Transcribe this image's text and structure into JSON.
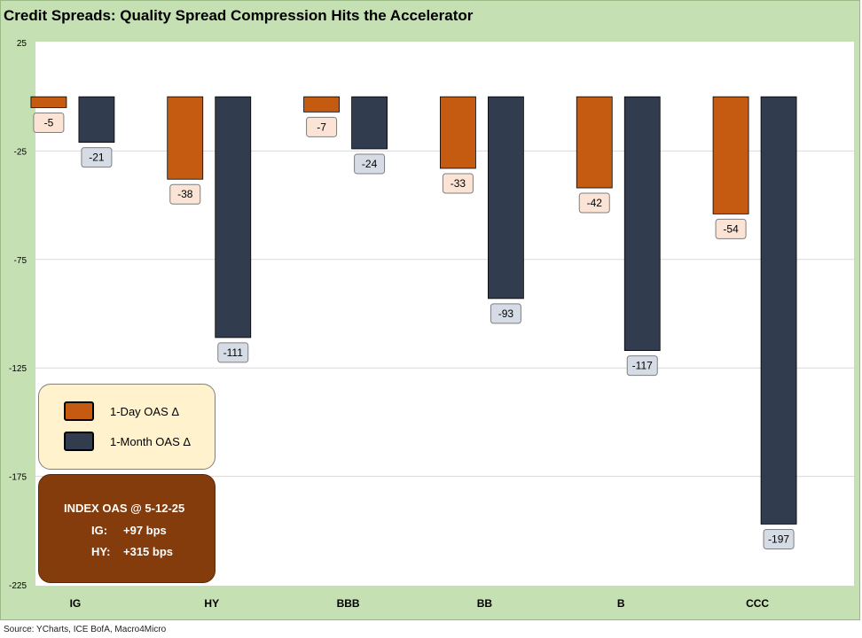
{
  "title": "Credit Spreads: Quality Spread Compression Hits the Accelerator",
  "source": "Source: YCharts, ICE BofA, Macro4Micro",
  "colors": {
    "one_day": "#c55a11",
    "one_month": "#323c4f",
    "one_day_label_bg": "#fbe4d5",
    "one_month_label_bg": "#d6dce5",
    "frame": "#c5e0b3"
  },
  "legend": {
    "items": [
      {
        "label": "1-Day OAS Δ",
        "color": "#c55a11"
      },
      {
        "label": "1-Month OAS Δ",
        "color": "#323c4f"
      }
    ]
  },
  "info_box": {
    "title": "INDEX OAS @ 5-12-25",
    "rows": [
      {
        "label": "IG:",
        "value": "+97 bps"
      },
      {
        "label": "HY:",
        "value": "+315 bps"
      }
    ]
  },
  "chart_data": {
    "type": "bar",
    "title": "Credit Spreads: Quality Spread Compression Hits the Accelerator",
    "categories": [
      "IG",
      "HY",
      "BBB",
      "BB",
      "B",
      "CCC"
    ],
    "series": [
      {
        "name": "1-Day OAS Δ",
        "values": [
          -5,
          -38,
          -7,
          -33,
          -42,
          -54
        ]
      },
      {
        "name": "1-Month OAS Δ",
        "values": [
          -21,
          -111,
          -24,
          -93,
          -117,
          -197
        ]
      }
    ],
    "ylim": [
      -225,
      25
    ],
    "yticks": [
      25,
      -25,
      -75,
      -125,
      -175,
      -225
    ],
    "grid": true,
    "legend_position": "bottom-left"
  }
}
